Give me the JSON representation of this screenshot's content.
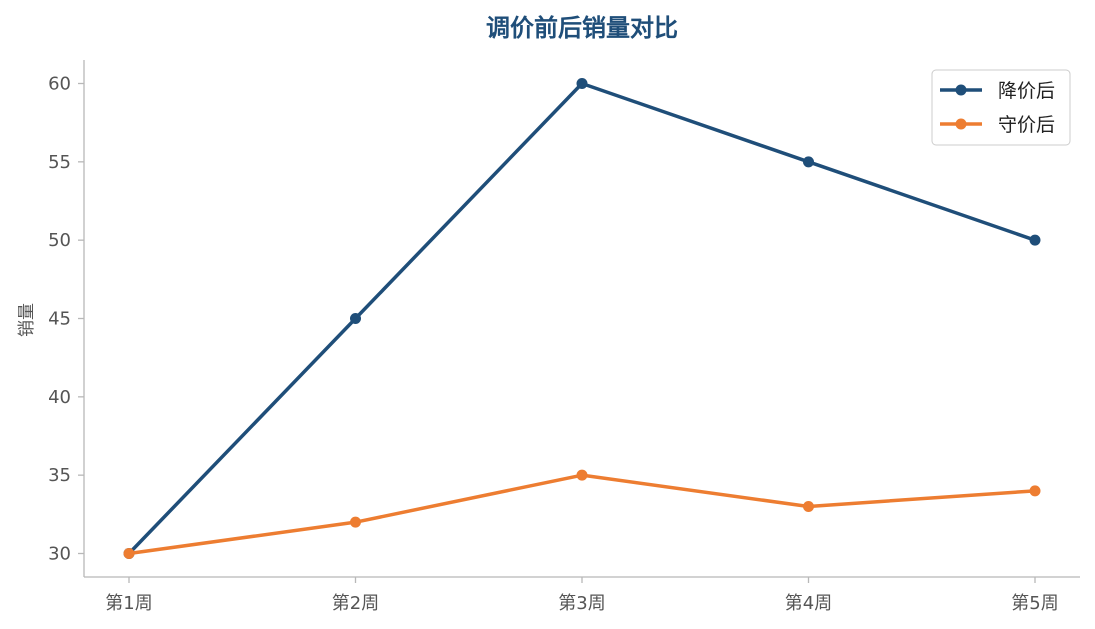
{
  "colors": {
    "title": "#1f4e79",
    "series_1": "#1f4e79",
    "series_2": "#ed7d31",
    "axis": "#b8b8b8",
    "tick_text": "#555555"
  },
  "chart_data": {
    "type": "line",
    "title": "调价前后销量对比",
    "xlabel": "",
    "ylabel": "销量",
    "categories": [
      "第1周",
      "第2周",
      "第3周",
      "第4周",
      "第5周"
    ],
    "yticks": [
      30,
      35,
      40,
      45,
      50,
      55,
      60
    ],
    "ylim": [
      28.5,
      61.5
    ],
    "grid": false,
    "legend_position": "top-right",
    "series": [
      {
        "name": "降价后",
        "values": [
          30,
          45,
          60,
          55,
          50
        ]
      },
      {
        "name": "守价后",
        "values": [
          30,
          32,
          35,
          33,
          34
        ]
      }
    ]
  }
}
